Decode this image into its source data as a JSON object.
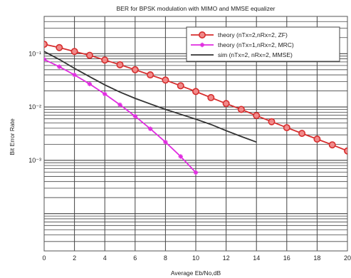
{
  "chart_data": {
    "type": "line",
    "title": "BER for BPSK modulation with MIMO and MMSE equalizer",
    "xlabel": "Average Eb/No,dB",
    "ylabel": "Bit Error Rate",
    "xlim": [
      0,
      20
    ],
    "xticks": [
      0,
      2,
      4,
      6,
      8,
      10,
      12,
      14,
      16,
      18,
      20
    ],
    "yscale": "log",
    "ylim": [
      2e-05,
      0.5
    ],
    "yticks": [
      {
        "value": 0.1,
        "label": "10⁻¹"
      },
      {
        "value": 0.01,
        "label": "10⁻²"
      },
      {
        "value": 0.001,
        "label": "10⁻³"
      }
    ],
    "grid": true,
    "legend_position": "top-right",
    "series": [
      {
        "name": "theory (nTx=2,nRx=2, ZF)",
        "color": "#d62e2e",
        "marker": "circle",
        "x": [
          0,
          1,
          2,
          3,
          4,
          5,
          6,
          7,
          8,
          9,
          10,
          11,
          12,
          13,
          14,
          15,
          16,
          17,
          18,
          19,
          20
        ],
        "y": [
          0.15,
          0.13,
          0.11,
          0.093,
          0.076,
          0.062,
          0.05,
          0.04,
          0.032,
          0.025,
          0.0195,
          0.015,
          0.0116,
          0.009,
          0.0069,
          0.0053,
          0.0041,
          0.0032,
          0.0025,
          0.00195,
          0.0015
        ]
      },
      {
        "name": "theory (nTx=1,nRx=2, MRC)",
        "color": "#e02ce0",
        "marker": "star",
        "x": [
          0,
          1,
          2,
          3,
          4,
          5,
          6,
          7,
          8,
          9,
          10
        ],
        "y": [
          0.078,
          0.057,
          0.04,
          0.027,
          0.0175,
          0.011,
          0.0067,
          0.0039,
          0.0022,
          0.00118,
          0.00059
        ]
      },
      {
        "name": "sim (nTx=2, nRx=2, MMSE)",
        "color": "#333333",
        "marker": "none",
        "x": [
          0,
          1,
          2,
          3,
          4,
          5,
          6,
          7,
          8,
          9,
          10,
          11,
          12,
          13,
          14
        ],
        "y": [
          0.11,
          0.078,
          0.053,
          0.037,
          0.026,
          0.019,
          0.0145,
          0.0114,
          0.009,
          0.0073,
          0.0059,
          0.0047,
          0.0036,
          0.0028,
          0.0022
        ]
      }
    ]
  }
}
